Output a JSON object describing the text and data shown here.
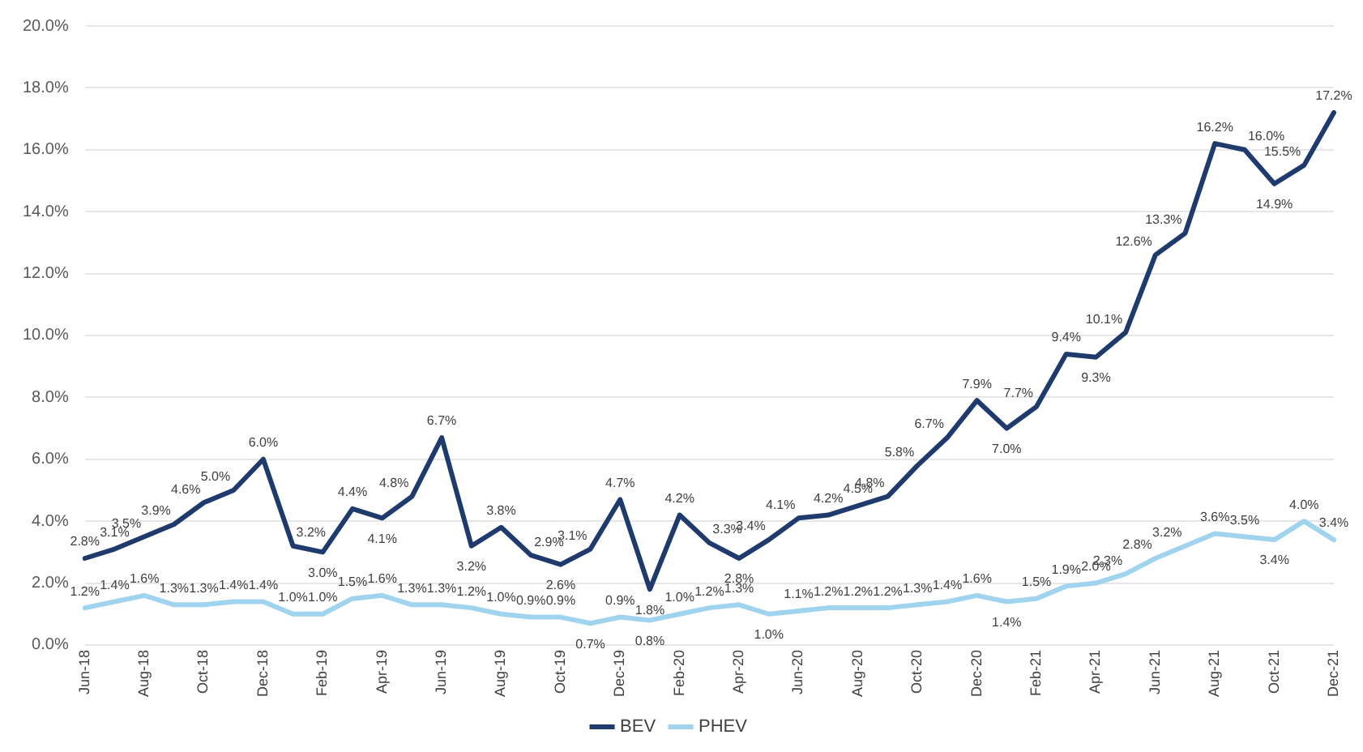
{
  "chart_data": {
    "type": "line",
    "categories": [
      "Jun-18",
      null,
      "Aug-18",
      null,
      "Oct-18",
      null,
      "Dec-18",
      null,
      "Feb-19",
      null,
      "Apr-19",
      null,
      "Jun-19",
      null,
      "Aug-19",
      null,
      "Oct-19",
      null,
      "Dec-19",
      null,
      "Feb-20",
      null,
      "Apr-20",
      null,
      "Jun-20",
      null,
      "Aug-20",
      null,
      "Oct-20",
      null,
      "Dec-20",
      null,
      "Feb-21",
      null,
      "Apr-21",
      null,
      "Jun-21",
      null,
      "Aug-21",
      null,
      "Oct-21",
      null,
      "Dec-21"
    ],
    "series": [
      {
        "name": "BEV",
        "color": "#1f3b6e",
        "values": [
          2.8,
          3.1,
          3.5,
          3.9,
          4.6,
          5.0,
          6.0,
          3.2,
          3.0,
          4.4,
          4.1,
          4.8,
          6.7,
          3.2,
          3.8,
          2.9,
          2.6,
          3.1,
          4.7,
          1.8,
          4.2,
          3.3,
          2.8,
          3.4,
          4.1,
          4.2,
          4.5,
          4.8,
          5.8,
          6.7,
          7.9,
          7.0,
          7.7,
          9.4,
          9.3,
          10.1,
          12.6,
          13.3,
          16.2,
          16.0,
          14.9,
          15.5,
          17.2
        ],
        "value_labels": [
          "2.8%",
          "3.1%",
          "3.5%",
          "3.9%",
          "4.6%",
          "5.0%",
          "6.0%",
          "3.2%",
          "3.0%",
          "4.4%",
          "4.1%",
          "4.8%",
          "6.7%",
          "3.2%",
          "3.8%",
          "2.9%",
          "2.6%",
          "3.1%",
          "4.7%",
          "1.8%",
          "4.2%",
          "3.3%",
          "2.8%",
          "3.4%",
          "4.1%",
          "4.2%",
          "4.5%",
          "4.8%",
          "5.8%",
          "6.7%",
          "7.9%",
          "7.0%",
          "7.7%",
          "9.4%",
          "9.3%",
          "10.1%",
          "12.6%",
          "13.3%",
          "16.2%",
          "16.0%",
          "14.9%",
          "15.5%",
          "17.2%"
        ]
      },
      {
        "name": "PHEV",
        "color": "#9fd3ee",
        "values": [
          1.2,
          1.4,
          1.6,
          1.3,
          1.3,
          1.4,
          1.4,
          1.0,
          1.0,
          1.5,
          1.6,
          1.3,
          1.3,
          1.2,
          1.0,
          0.9,
          0.9,
          0.7,
          0.9,
          0.8,
          1.0,
          1.2,
          1.3,
          1.0,
          1.1,
          1.2,
          1.2,
          1.2,
          1.3,
          1.4,
          1.6,
          1.4,
          1.5,
          1.9,
          2.0,
          2.3,
          2.8,
          3.2,
          3.6,
          3.5,
          3.4,
          4.0,
          3.4
        ],
        "value_labels": [
          "1.2%",
          "1.4%",
          "1.6%",
          "1.3%",
          "1.3%",
          "1.4%",
          "1.4%",
          "1.0%",
          "1.0%",
          "1.5%",
          "1.6%",
          "1.3%",
          "1.3%",
          "1.2%",
          "1.0%",
          "0.9%",
          "0.9%",
          "0.7%",
          "0.9%",
          "0.8%",
          "1.0%",
          "1.2%",
          "1.3%",
          "1.0%",
          "1.1%",
          "1.2%",
          "1.2%",
          "1.2%",
          "1.3%",
          "1.4%",
          "1.6%",
          "1.4%",
          "1.5%",
          "1.9%",
          "2.0%",
          "2.3%",
          "2.8%",
          "3.2%",
          "3.6%",
          "3.5%",
          "3.4%",
          "4.0%",
          "3.4%"
        ]
      }
    ],
    "ylim": [
      0,
      20
    ],
    "yticks": [
      {
        "value": 0,
        "label": "0.0%"
      },
      {
        "value": 2,
        "label": "2.0%"
      },
      {
        "value": 4,
        "label": "4.0%"
      },
      {
        "value": 6,
        "label": "6.0%"
      },
      {
        "value": 8,
        "label": "8.0%"
      },
      {
        "value": 10,
        "label": "10.0%"
      },
      {
        "value": 12,
        "label": "12.0%"
      },
      {
        "value": 14,
        "label": "14.0%"
      },
      {
        "value": 16,
        "label": "16.0%"
      },
      {
        "value": 18,
        "label": "18.0%"
      },
      {
        "value": 20,
        "label": "20.0%"
      }
    ],
    "grid": "y",
    "legend": "bottom",
    "marker": "none",
    "line_style": "solid"
  }
}
